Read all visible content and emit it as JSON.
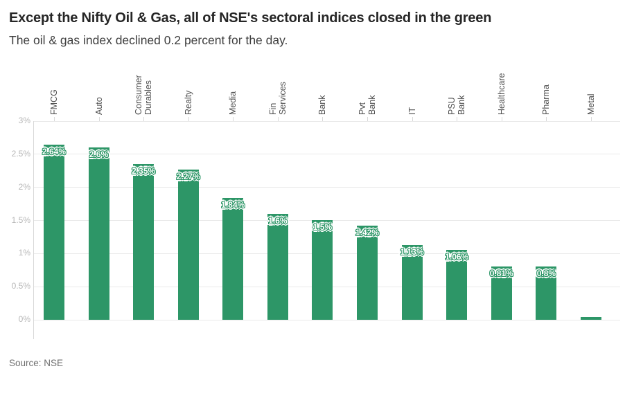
{
  "chart_data": {
    "type": "bar",
    "orientation": "vertical",
    "title": "Except the Nifty Oil & Gas, all of NSE's sectoral indices closed in the green",
    "subtitle": "The oil & gas index declined 0.2 percent for the day.",
    "source": "Source: NSE",
    "categories": [
      "FMCG",
      "Auto",
      "Consumer Durables",
      "Realty",
      "Media",
      "Fin Services",
      "Bank",
      "Pvt Bank",
      "IT",
      "PSU Bank",
      "Healthcare",
      "Pharma",
      "Metal"
    ],
    "values": [
      2.64,
      2.6,
      2.35,
      2.27,
      1.84,
      1.6,
      1.5,
      1.42,
      1.13,
      1.06,
      0.81,
      0.8,
      0.04
    ],
    "bar_labels": [
      "2.64%",
      "2.6%",
      "2.35%",
      "2.27%",
      "1.84%",
      "1.6%",
      "1.5%",
      "1.42%",
      "1.13%",
      "1.06%",
      "0.81%",
      "0.8%",
      ""
    ],
    "y_tick_values": [
      0,
      0.5,
      1,
      1.5,
      2,
      2.5,
      3
    ],
    "y_tick_labels": [
      "0%",
      "0.5%",
      "1%",
      "1.5%",
      "2%",
      "2.5%",
      "3%"
    ],
    "ylim": [
      0,
      3
    ],
    "xlabel": "",
    "ylabel": "",
    "grid": "horizontal",
    "legend": "none",
    "category_axis_position": "top",
    "colors": {
      "bar": "#2d9667",
      "bar_label_text": "#ffffff",
      "grid_line": "#e9e9e9",
      "axis_line": "#d8d8d8",
      "y_tick_text": "#b7b7b7",
      "category_text": "#4f4f4f",
      "title_text": "#262626",
      "subtitle_text": "#3f3f3f",
      "source_text": "#6e6e6e"
    }
  }
}
